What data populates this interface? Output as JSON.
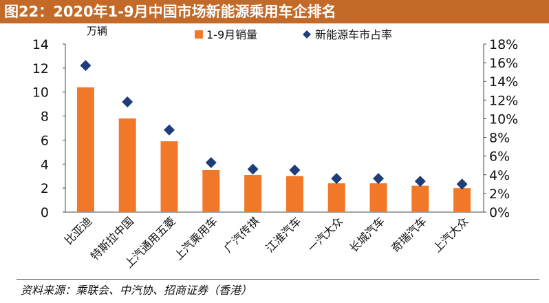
{
  "title": "图22：2020年1-9月中国市场新能源乘用车企排名",
  "source": "资料来源：乘联会、中汽协、招商证券（香港）",
  "chart_data": {
    "type": "bar",
    "categories": [
      "比亚迪",
      "特斯拉中国",
      "上汽通用五菱",
      "上汽乘用车",
      "广汽传祺",
      "江淮汽车",
      "一汽大众",
      "长城汽车",
      "奇瑞汽车",
      "上汽大众"
    ],
    "series": [
      {
        "name": "1-9月销量",
        "type": "bar",
        "axis": "left",
        "color": "#f07828",
        "values": [
          10.4,
          7.8,
          5.9,
          3.5,
          3.1,
          3.0,
          2.4,
          2.4,
          2.2,
          2.0
        ]
      },
      {
        "name": "新能源车市占率",
        "type": "scatter",
        "axis": "right",
        "color": "#1f3d7a",
        "marker": "diamond",
        "values": [
          15.7,
          11.8,
          8.8,
          5.3,
          4.6,
          4.5,
          3.6,
          3.6,
          3.3,
          3.0
        ]
      }
    ],
    "ylabel": "万辆",
    "ylim": [
      0,
      14
    ],
    "yticks": [
      0,
      2,
      4,
      6,
      8,
      10,
      12,
      14
    ],
    "y2lim": [
      0,
      18
    ],
    "y2ticks": [
      "0%",
      "2%",
      "4%",
      "6%",
      "8%",
      "10%",
      "12%",
      "14%",
      "16%",
      "18%"
    ],
    "legend_position": "top-center",
    "grid": false
  }
}
